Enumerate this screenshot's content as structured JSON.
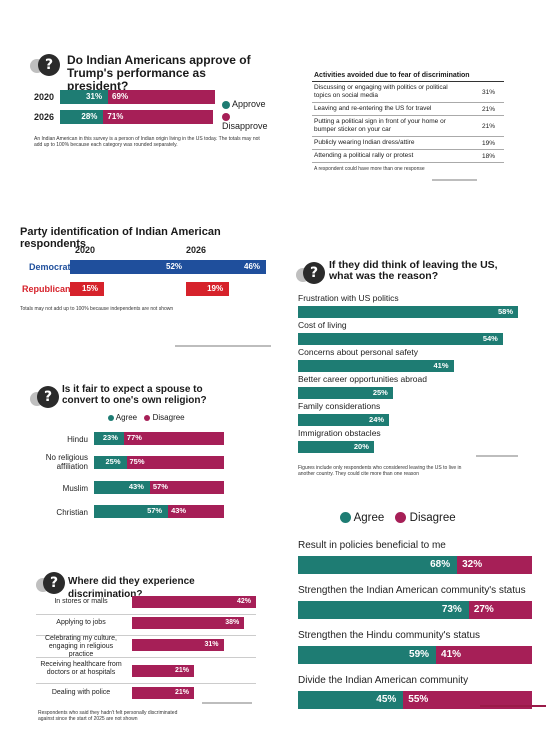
{
  "colors": {
    "agree": "#1e7c73",
    "disagree": "#a61f57",
    "democrat": "#1f4f9c",
    "republican": "#d6222b"
  },
  "approve_panel": {
    "title": "Do Indian Americans approve of Trump's performance as president?",
    "icon": "question-icon",
    "legend": {
      "approve": "Approve",
      "disapprove": "Disapprove"
    },
    "note": "An Indian American in this survey is a person of Indian origin living in the US today. The totals may not add up to 100% because each category was rounded separately."
  },
  "activities_panel": {
    "title": "Activities avoided due to fear of discrimination",
    "rows": [
      {
        "activity": "Discussing or engaging with politics or political topics on social media",
        "value": "31%"
      },
      {
        "activity": "Leaving and re-entering the US for travel",
        "value": "21%"
      },
      {
        "activity": "Putting a political sign in front of your home or bumper sticker on your car",
        "value": "21%"
      },
      {
        "activity": "Publicly wearing Indian dress/attire",
        "value": "19%"
      },
      {
        "activity": "Attending a political rally or protest",
        "value": "18%"
      }
    ],
    "note": "A respondent could have more than one response"
  },
  "party_panel": {
    "title": "Party identification of Indian American respondents",
    "note": "Totals may not add up to 100% because independents are not shown"
  },
  "leaving_panel": {
    "title": "If they did think of leaving the US, what was the reason?",
    "icon": "question-icon",
    "note": "Figures include only respondents who considered leaving the US to live in another country. They could cite more than one reason"
  },
  "spouse_panel": {
    "title": "Is it fair to expect a spouse to convert to one's own religion?",
    "icon": "question-icon",
    "legend": {
      "agree": "Agree",
      "disagree": "Disagree"
    }
  },
  "policies_panel": {
    "legend": {
      "agree": "Agree",
      "disagree": "Disagree"
    }
  },
  "discrimination_panel": {
    "title": "Where did they experience discrimination?",
    "icon": "question-icon",
    "note": "Respondents who said they hadn't felt personally discriminated against since the start of 2025 are not shown"
  },
  "chart_data": [
    {
      "id": "approve",
      "type": "bar",
      "categories": [
        "2020",
        "2026"
      ],
      "series": [
        {
          "name": "Approve",
          "values": [
            31,
            28
          ]
        },
        {
          "name": "Disapprove",
          "values": [
            69,
            71
          ]
        }
      ],
      "title": "Do Indian Americans approve of Trump's performance as president?",
      "xlabel": "",
      "ylabel": ""
    },
    {
      "id": "party",
      "type": "bar",
      "categories": [
        "Democrat",
        "Republican"
      ],
      "panels": [
        "2020",
        "2026"
      ],
      "values_2020": [
        52,
        15
      ],
      "values_2026": [
        46,
        19
      ],
      "title": "Party identification of Indian American respondents",
      "xlabel": "",
      "ylabel": ""
    },
    {
      "id": "leaving",
      "type": "bar",
      "categories": [
        "Frustration with US politics",
        "Cost of living",
        "Concerns about personal safety",
        "Better career opportunities abroad",
        "Family considerations",
        "Immigration obstacles"
      ],
      "values": [
        58,
        54,
        41,
        25,
        24,
        20
      ],
      "title": "If they did think of leaving the US, what was the reason?",
      "xlabel": "",
      "ylabel": ""
    },
    {
      "id": "spouse",
      "type": "bar",
      "categories": [
        "Hindu",
        "No religious affiliation",
        "Muslim",
        "Christian"
      ],
      "series": [
        {
          "name": "Agree",
          "values": [
            23,
            25,
            43,
            57
          ]
        },
        {
          "name": "Disagree",
          "values": [
            77,
            75,
            57,
            43
          ]
        }
      ],
      "title": "Is it fair to expect a spouse to convert to one's own religion?",
      "xlabel": "",
      "ylabel": ""
    },
    {
      "id": "policies",
      "type": "bar",
      "categories": [
        "Result in policies beneficial to me",
        "Strengthen the Indian American community's status",
        "Strengthen the Hindu community's status",
        "Divide the Indian American community"
      ],
      "series": [
        {
          "name": "Agree",
          "values": [
            68,
            73,
            59,
            45
          ]
        },
        {
          "name": "Disagree",
          "values": [
            32,
            27,
            41,
            55
          ]
        }
      ],
      "title": "",
      "xlabel": "",
      "ylabel": ""
    },
    {
      "id": "discrimination",
      "type": "bar",
      "categories": [
        "In stores or malls",
        "Applying to jobs",
        "Celebrating my culture, engaging in religious practice",
        "Receiving healthcare from doctors or at hospitals",
        "Dealing with police"
      ],
      "values": [
        42,
        38,
        31,
        21,
        21
      ],
      "title": "Where did they experience discrimination?",
      "xlabel": "",
      "ylabel": ""
    }
  ]
}
